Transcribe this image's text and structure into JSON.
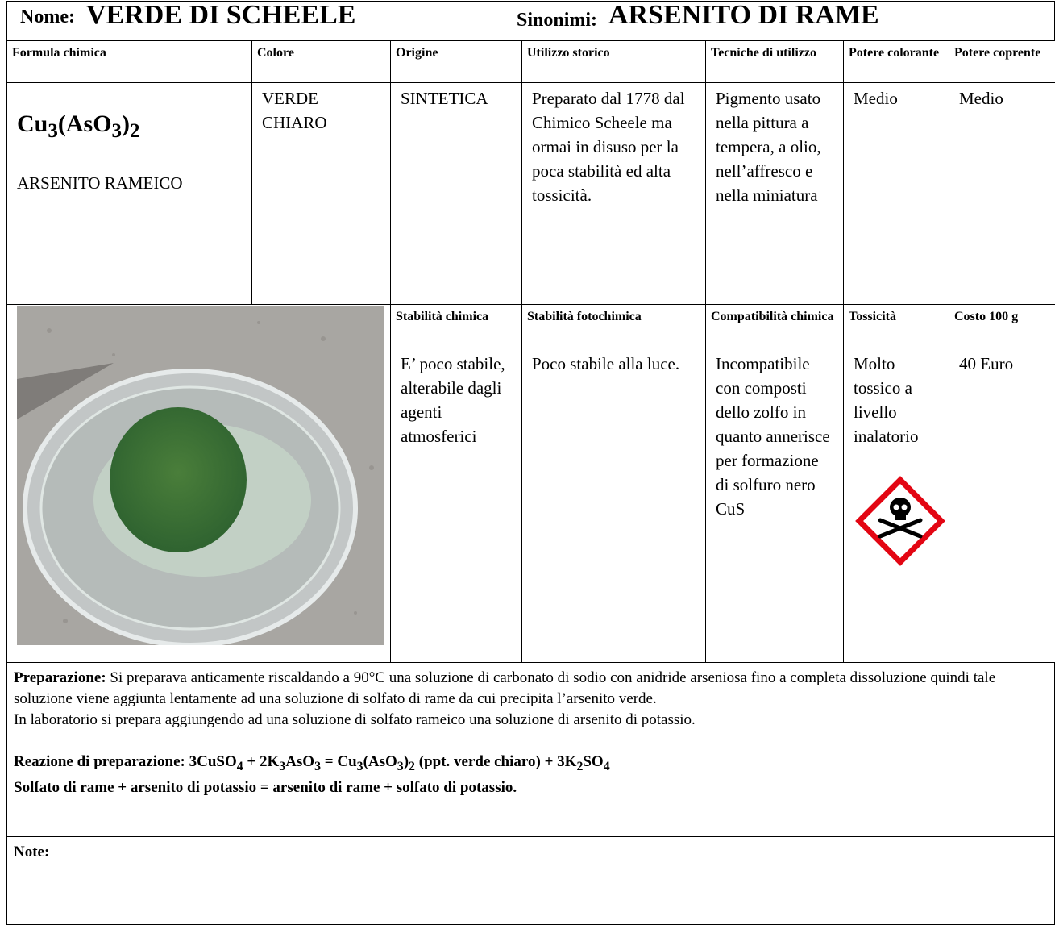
{
  "header": {
    "name_label": "Nome:",
    "name": "VERDE DI SCHEELE",
    "synonyms_label": "Sinonimi:",
    "synonyms": "ARSENITO DI RAME"
  },
  "table": {
    "headers": [
      "Formula chimica",
      "Colore",
      "Origine",
      "Utilizzo storico",
      "Tecniche di utilizzo",
      "Potere colorante",
      "Potere coprente"
    ],
    "formula": [
      "Cu",
      "3",
      "(AsO",
      "3",
      ")",
      "2"
    ],
    "formula_name": "ARSENITO RAMEICO",
    "cells": [
      "VERDE CHIARO",
      "SINTETICA",
      "Preparato dal 1778 dal Chimico Scheele ma ormai in disuso per la poca stabilità ed alta tossicità.",
      "Pigmento usato nella pittura a tempera, a olio, nell’affresco e nella miniatura",
      "Medio",
      "Medio"
    ],
    "headers2": [
      "Stabilità chimica",
      "Stabilità fotochimica",
      "Compatibilità chimica",
      "Tossicità",
      "Costo 100 g"
    ],
    "cells2": [
      "E’ poco stabile, alterabile dagli agenti atmosferici",
      "Poco stabile alla luce.",
      "Incompatibile con composti dello zolfo in quanto annerisce per formazione di solfuro nero CuS",
      "Molto tossico a livello inalatorio",
      "40 Euro"
    ]
  },
  "preparation": {
    "label": "Preparazione:",
    "text": "Si preparava anticamente riscaldando a 90°C una soluzione di carbonato di sodio con anidride arseniosa fino a completa dissoluzione quindi tale soluzione viene aggiunta lentamente ad una soluzione di solfato di rame  da cui precipita l’arsenito verde.",
    "lab": "In laboratorio si prepara aggiungendo ad una soluzione di solfato rameico una soluzione di arsenito di potassio.",
    "reaction_label": "Reazione di preparazione:",
    "reaction": [
      " 3CuSO",
      "4",
      " + 2K",
      "3",
      "AsO",
      "3",
      " = Cu",
      "3",
      "(AsO",
      "3",
      ")",
      "2",
      " (ppt. verde chiaro) + 3K",
      "2",
      "SO",
      "4"
    ],
    "reaction_words": "Solfato di rame + arsenito di potassio = arsenito di rame + solfato di potassio."
  },
  "note": {
    "label": "Note:"
  }
}
